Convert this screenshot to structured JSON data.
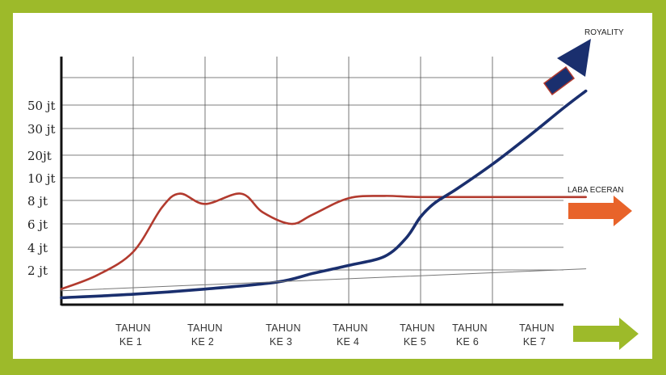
{
  "colors": {
    "frame": "#9dba2a",
    "royalty": "#1a2f6e",
    "retail": "#b23a2e",
    "retail_arrow": "#e8632a",
    "footer_arrow": "#9dba2a",
    "grid": "#555555"
  },
  "chart_data": {
    "type": "line",
    "title": "",
    "xlabel": "",
    "ylabel": "",
    "grid": true,
    "y_tick_labels": [
      "2 jt",
      "4 jt",
      "6 jt",
      "8 jt",
      "10 jt",
      "20jt",
      "30 jt",
      "50 jt"
    ],
    "x_tick_labels": [
      {
        "line1": "TAHUN",
        "line2": "KE 1"
      },
      {
        "line1": "TAHUN",
        "line2": "KE 2"
      },
      {
        "line1": "TAHUN",
        "line2": "KE 3"
      },
      {
        "line1": "TAHUN",
        "line2": "KE 4"
      },
      {
        "line1": "TAHUN",
        "line2": "KE 5"
      },
      {
        "line1": "TAHUN",
        "line2": "KE 6"
      },
      {
        "line1": "TAHUN",
        "line2": "KE 7"
      }
    ],
    "x_range": [
      0,
      7.3
    ],
    "y_scale": "categorical levels (0 = axis, 1 = 2 jt ... 8 = 50 jt)",
    "series": [
      {
        "name": "LABA ECERAN",
        "color": "#b23a2e",
        "points": [
          [
            0,
            0.45
          ],
          [
            0.5,
            0.85
          ],
          [
            1,
            1.8
          ],
          [
            1.4,
            3.7
          ],
          [
            1.65,
            4.3
          ],
          [
            2,
            3.85
          ],
          [
            2.5,
            4.3
          ],
          [
            2.8,
            3.5
          ],
          [
            3.2,
            3.0
          ],
          [
            3.5,
            3.4
          ],
          [
            4,
            4.1
          ],
          [
            4.5,
            4.2
          ],
          [
            5,
            4.15
          ],
          [
            6,
            4.15
          ],
          [
            7.3,
            4.15
          ]
        ]
      },
      {
        "name": "ROYALITY",
        "color": "#1a2f6e",
        "points": [
          [
            0,
            0.2
          ],
          [
            1,
            0.3
          ],
          [
            2,
            0.45
          ],
          [
            3,
            0.65
          ],
          [
            3.5,
            0.9
          ],
          [
            4,
            1.2
          ],
          [
            4.5,
            1.6
          ],
          [
            4.8,
            2.4
          ],
          [
            5,
            3.3
          ],
          [
            5.2,
            3.9
          ],
          [
            5.5,
            4.5
          ],
          [
            6,
            5.6
          ],
          [
            6.5,
            6.7
          ],
          [
            7,
            7.9
          ],
          [
            7.3,
            8.6
          ]
        ]
      },
      {
        "color": "#777777",
        "points": [
          [
            0,
            0.4
          ],
          [
            7.3,
            1.05
          ]
        ]
      }
    ]
  }
}
